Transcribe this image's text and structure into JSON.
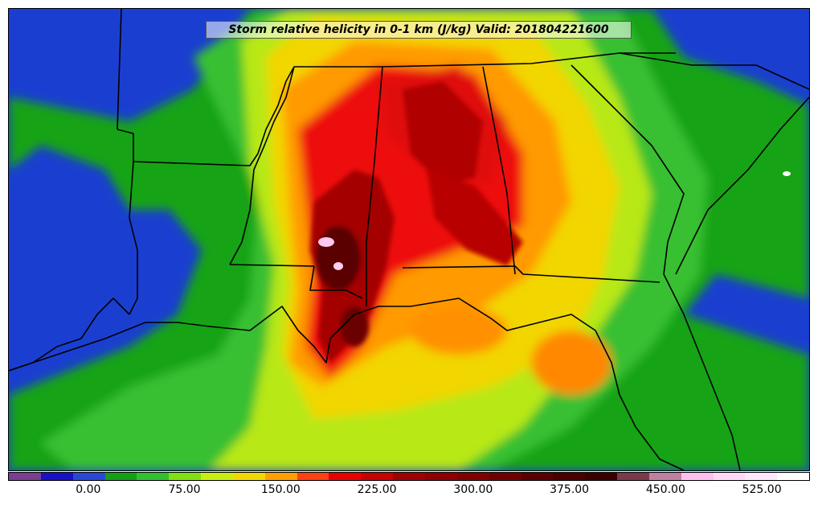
{
  "title": "Storm relative helicity in 0-1 km (J/kg) Valid: 201804221600",
  "colorbar": {
    "colors": [
      "#7b3f91",
      "#1a10c8",
      "#2a48d8",
      "#14a014",
      "#30c030",
      "#80e010",
      "#c8ee10",
      "#f0d800",
      "#ffa000",
      "#ff4010",
      "#e80000",
      "#c80000",
      "#a00000",
      "#900000",
      "#800000",
      "#700000",
      "#5a0000",
      "#4a0000",
      "#3a0000",
      "#7a3a4a",
      "#c080a0",
      "#ffc0f0",
      "#ffd8f8",
      "#ffe8fc",
      "#ffffff"
    ],
    "ticks": [
      "0.00",
      "75.00",
      "150.00",
      "225.00",
      "300.00",
      "375.00",
      "450.00",
      "525.00"
    ],
    "tick_indices": [
      2,
      5,
      8,
      11,
      14,
      17,
      20,
      23
    ]
  }
}
